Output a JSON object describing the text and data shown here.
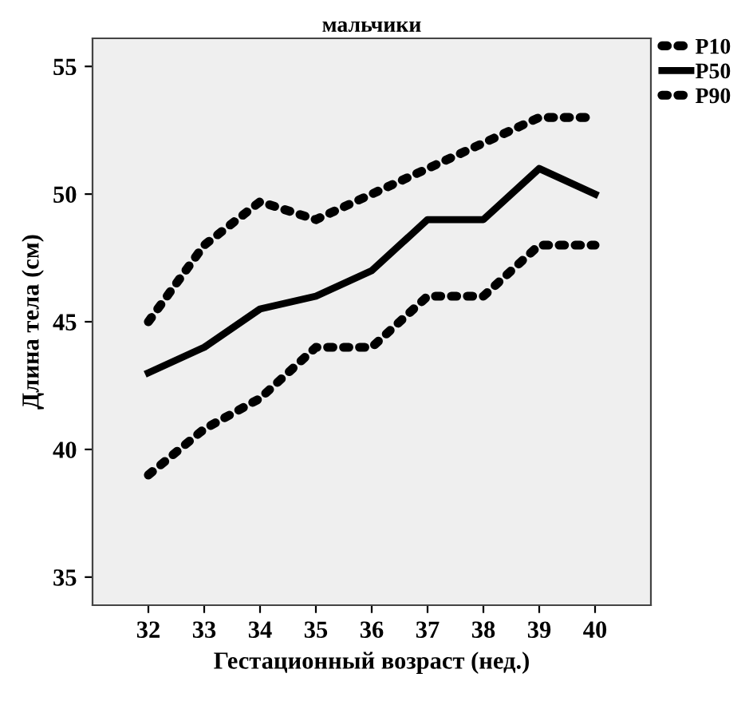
{
  "chart_data": {
    "type": "line",
    "title": "мальчики",
    "xlabel": "Гестационный возраст (нед.)",
    "ylabel": "Длина тела (см)",
    "x": [
      32,
      33,
      34,
      35,
      36,
      37,
      38,
      39,
      40
    ],
    "series": [
      {
        "name": "P10",
        "color": "#000000",
        "line_style": "dotted",
        "values": [
          39,
          40.8,
          42,
          44,
          44,
          46,
          46,
          48,
          48
        ]
      },
      {
        "name": "P50",
        "color": "#000000",
        "line_style": "solid",
        "values": [
          43,
          44,
          45.5,
          46,
          47,
          49,
          49,
          51,
          50
        ]
      },
      {
        "name": "P90",
        "color": "#000000",
        "line_style": "dotted",
        "values": [
          45,
          48,
          49.7,
          49,
          50,
          51,
          52,
          53,
          53
        ]
      }
    ],
    "xlim": [
      31,
      41
    ],
    "xticks": [
      32,
      33,
      34,
      35,
      36,
      37,
      38,
      39,
      40
    ],
    "ylim": [
      33.9,
      56.1
    ],
    "yticks": [
      35,
      40,
      45,
      50,
      55
    ],
    "grid": false,
    "legend": "top right",
    "marker": "none"
  }
}
